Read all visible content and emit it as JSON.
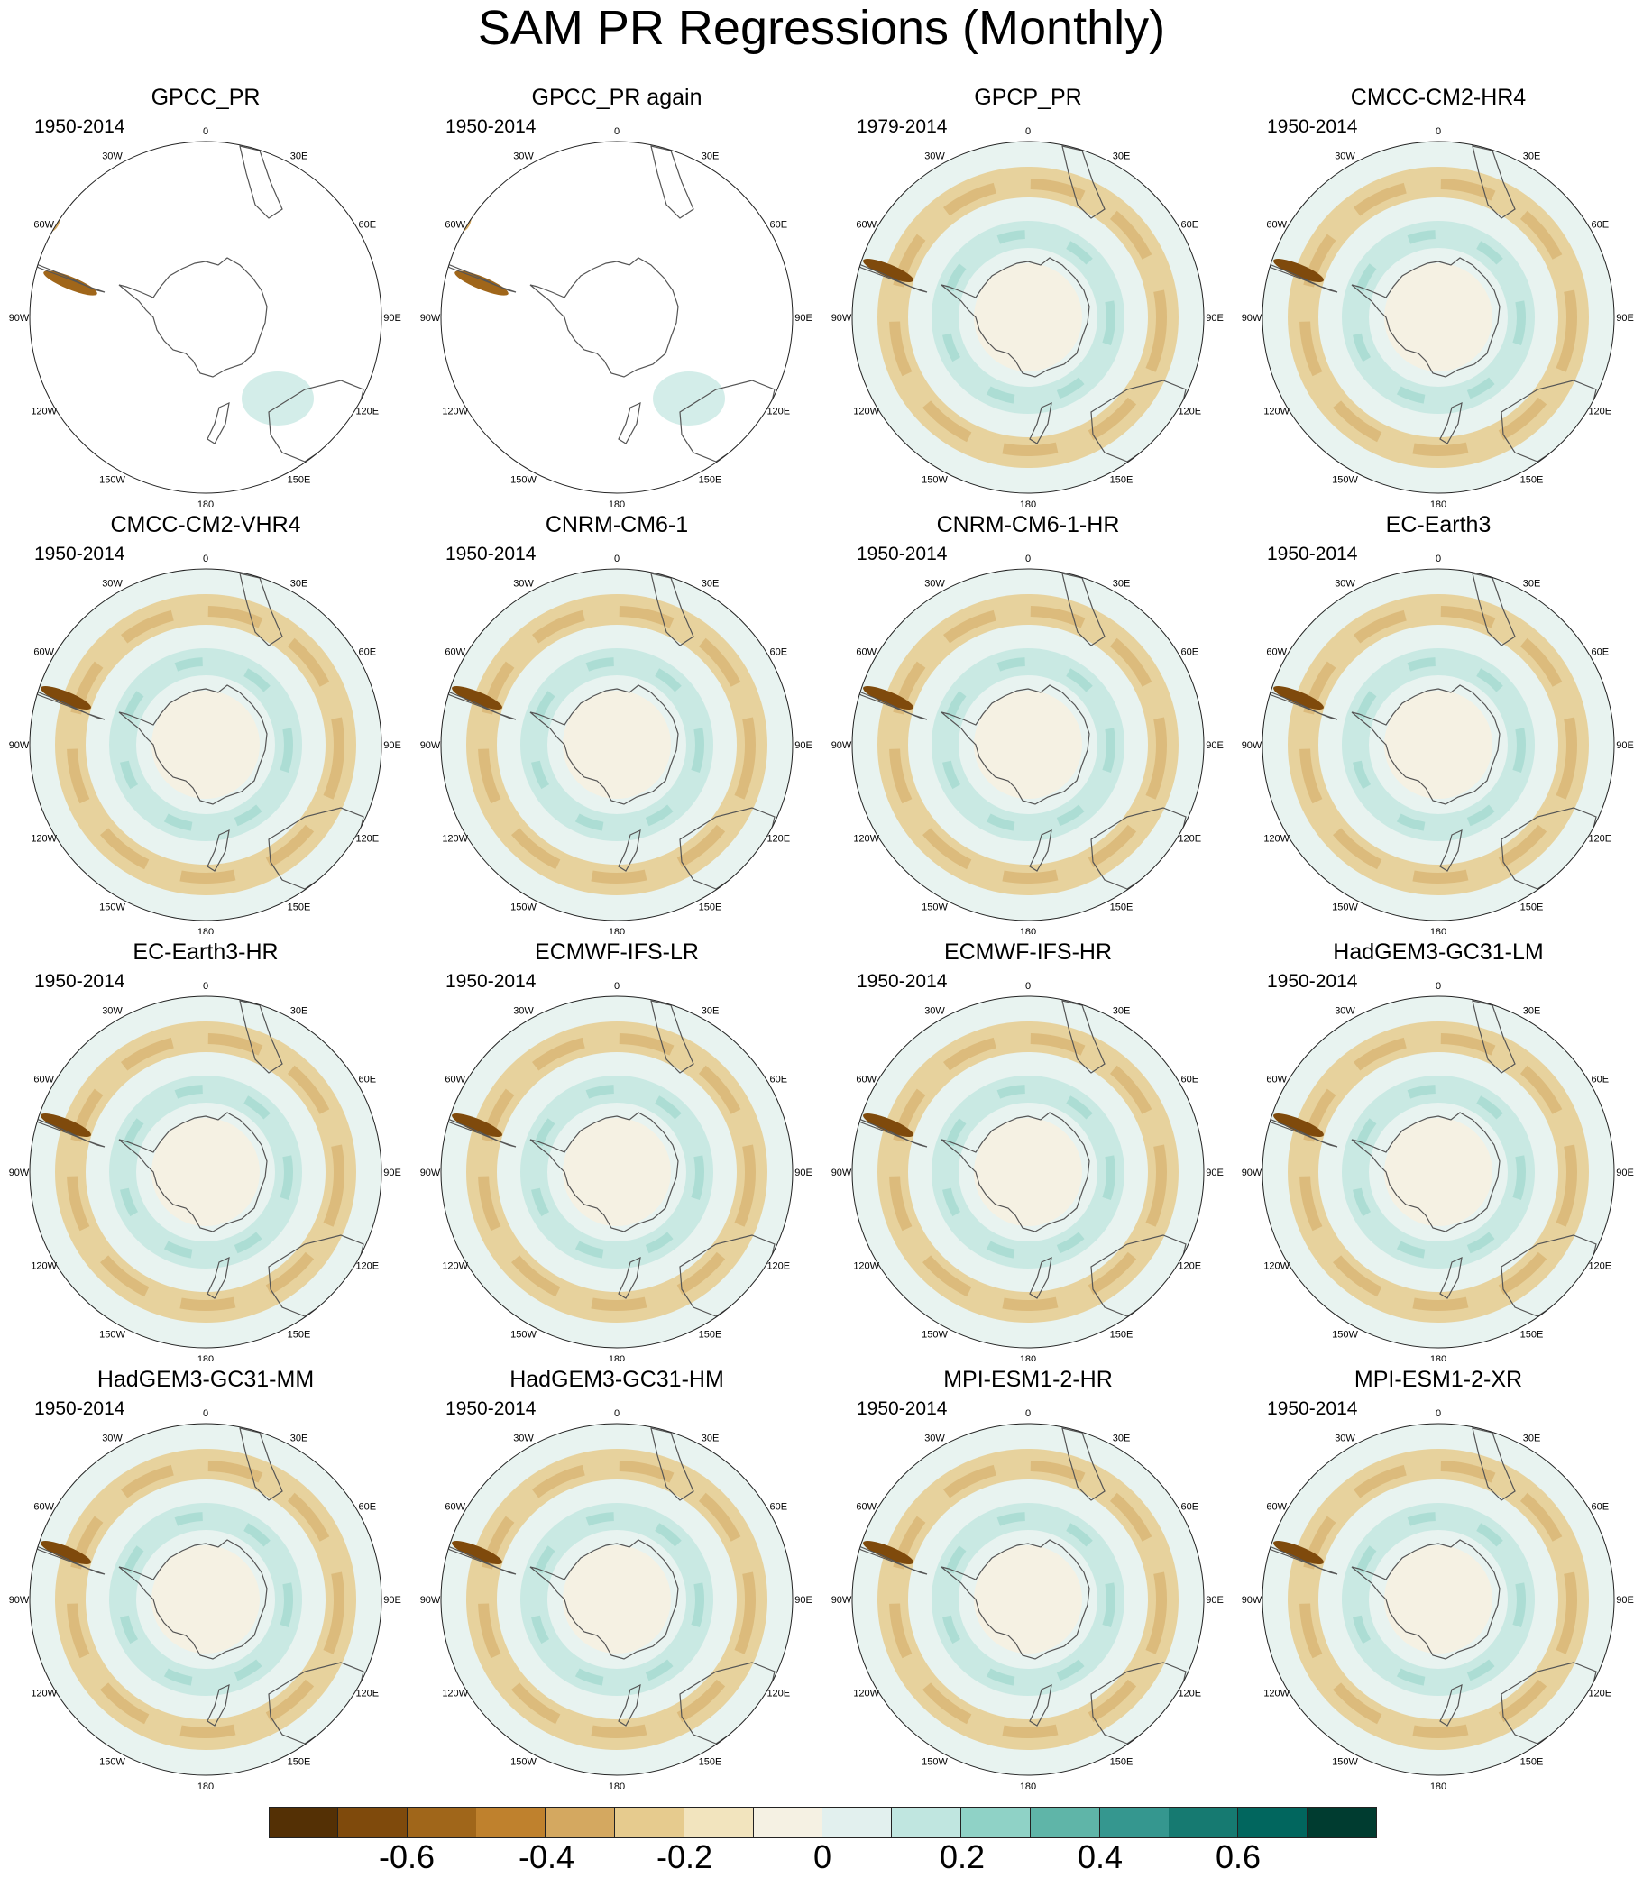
{
  "title": "SAM PR Regressions (Monthly)",
  "longitude_labels": [
    "0",
    "30E",
    "60E",
    "90E",
    "120E",
    "150E",
    "180",
    "150W",
    "120W",
    "90W",
    "60W",
    "30W"
  ],
  "panels": [
    {
      "title": "GPCC_PR",
      "period": "1950-2014",
      "coverage": "land"
    },
    {
      "title": "GPCC_PR again",
      "period": "1950-2014",
      "coverage": "land"
    },
    {
      "title": "GPCP_PR",
      "period": "1979-2014",
      "coverage": "full"
    },
    {
      "title": "CMCC-CM2-HR4",
      "period": "1950-2014",
      "coverage": "full"
    },
    {
      "title": "CMCC-CM2-VHR4",
      "period": "1950-2014",
      "coverage": "full"
    },
    {
      "title": "CNRM-CM6-1",
      "period": "1950-2014",
      "coverage": "full"
    },
    {
      "title": "CNRM-CM6-1-HR",
      "period": "1950-2014",
      "coverage": "full"
    },
    {
      "title": "EC-Earth3",
      "period": "1950-2014",
      "coverage": "full"
    },
    {
      "title": "EC-Earth3-HR",
      "period": "1950-2014",
      "coverage": "full"
    },
    {
      "title": "ECMWF-IFS-LR",
      "period": "1950-2014",
      "coverage": "full"
    },
    {
      "title": "ECMWF-IFS-HR",
      "period": "1950-2014",
      "coverage": "full"
    },
    {
      "title": "HadGEM3-GC31-LM",
      "period": "1950-2014",
      "coverage": "full"
    },
    {
      "title": "HadGEM3-GC31-MM",
      "period": "1950-2014",
      "coverage": "full"
    },
    {
      "title": "HadGEM3-GC31-HM",
      "period": "1950-2014",
      "coverage": "full"
    },
    {
      "title": "MPI-ESM1-2-HR",
      "period": "1950-2014",
      "coverage": "full"
    },
    {
      "title": "MPI-ESM1-2-XR",
      "period": "1950-2014",
      "coverage": "full"
    }
  ],
  "colorbar": {
    "colors": [
      "#543005",
      "#7f4a0c",
      "#a0661a",
      "#bf812d",
      "#d4a860",
      "#e6cb8e",
      "#f2e4be",
      "#f5f1e3",
      "#e2f0ee",
      "#c0e6e0",
      "#8fd2c6",
      "#5fb5a8",
      "#35978f",
      "#167a71",
      "#01665e",
      "#003c30"
    ],
    "labels": [
      "-0.6",
      "-0.4",
      "-0.2",
      "0",
      "0.2",
      "0.4",
      "0.6"
    ],
    "label_values": [
      -0.6,
      -0.4,
      -0.2,
      0,
      0.2,
      0.4,
      0.6
    ]
  },
  "colors": {
    "land_outline": "#555555",
    "ocean_base": "#e8f3f0",
    "neutral_brown": "#e6cb8e",
    "neutral_teal": "#c0e6e0"
  }
}
